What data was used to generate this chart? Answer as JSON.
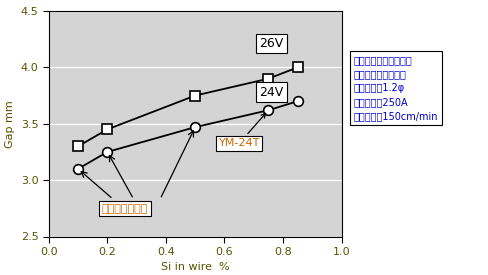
{
  "xlabel": "Si in wire  %",
  "ylabel": "Gap mm",
  "xlim": [
    0.0,
    1.0
  ],
  "ylim": [
    2.5,
    4.5
  ],
  "xticks": [
    0.0,
    0.2,
    0.4,
    0.6,
    0.8,
    1.0
  ],
  "yticks": [
    2.5,
    3.0,
    3.5,
    4.0,
    4.5
  ],
  "background_color": "#d4d4d4",
  "s26V": {
    "x": [
      0.1,
      0.2,
      0.5,
      0.75,
      0.85
    ],
    "y": [
      3.3,
      3.45,
      3.75,
      3.9,
      4.0
    ]
  },
  "s24V": {
    "x": [
      0.1,
      0.2,
      0.5,
      0.75,
      0.85
    ],
    "y": [
      3.1,
      3.25,
      3.47,
      3.62,
      3.7
    ]
  },
  "info_lines": [
    "パルスマグアーク溶接",
    "横向重ねずみ肉継手",
    "ワイヤ径：1.2φ",
    "溶接電流：250A",
    "溶接速度：150cm/min"
  ],
  "info_color": "#0000cc",
  "label_26V": "26V",
  "label_24V": "24V",
  "label_YM24T": "YM-24T",
  "label_conv": "従来溶接ワイヤ",
  "ann_color": "#cc6600"
}
